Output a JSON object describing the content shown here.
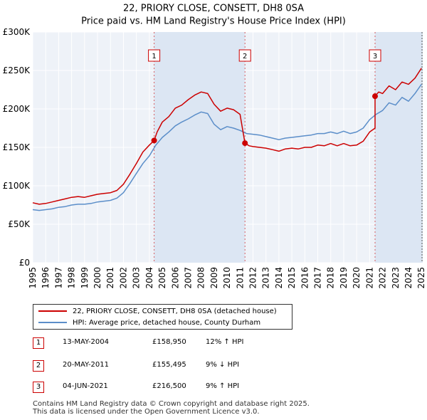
{
  "title_line1": "22, PRIORY CLOSE, CONSETT, DH8 0SA",
  "title_line2": "Price paid vs. HM Land Registry's House Price Index (HPI)",
  "chart_data": {
    "type": "line",
    "title": "22, PRIORY CLOSE, CONSETT, DH8 0SA",
    "subtitle": "Price paid vs. HM Land Registry's House Price Index (HPI)",
    "xlim": [
      1995,
      2025.1
    ],
    "ylim": [
      0,
      300000
    ],
    "x_ticks": [
      1995,
      1996,
      1997,
      1998,
      1999,
      2000,
      2001,
      2002,
      2003,
      2004,
      2005,
      2006,
      2007,
      2008,
      2009,
      2010,
      2011,
      2012,
      2013,
      2014,
      2015,
      2016,
      2017,
      2018,
      2019,
      2020,
      2021,
      2022,
      2023,
      2024,
      2025
    ],
    "x_tick_labels": [
      "1995",
      "1996",
      "1997",
      "1998",
      "1999",
      "2000",
      "2001",
      "2002",
      "2003",
      "2004",
      "2005",
      "2006",
      "2007",
      "2008",
      "2009",
      "2010",
      "2011",
      "2012",
      "2013",
      "2014",
      "2015",
      "2016",
      "2017",
      "2018",
      "2019",
      "2020",
      "2021",
      "2022",
      "2023",
      "2024",
      "2025"
    ],
    "y_ticks": [
      0,
      50000,
      100000,
      150000,
      200000,
      250000,
      300000
    ],
    "y_tick_labels": [
      "£0",
      "£50K",
      "£100K",
      "£150K",
      "£200K",
      "£250K",
      "£300K"
    ],
    "grid": true,
    "series": [
      {
        "name": "22, PRIORY CLOSE, CONSETT, DH8 0SA (detached house)",
        "color": "#cc0000",
        "x": [
          1995.0,
          1995.5,
          1996.0,
          1996.5,
          1997.0,
          1997.5,
          1998.0,
          1998.5,
          1999.0,
          1999.5,
          2000.0,
          2000.5,
          2001.0,
          2001.5,
          2002.0,
          2002.5,
          2003.0,
          2003.5,
          2004.0,
          2004.37,
          2004.37,
          2004.6,
          2005.0,
          2005.5,
          2006.0,
          2006.5,
          2007.0,
          2007.5,
          2008.0,
          2008.5,
          2009.0,
          2009.5,
          2010.0,
          2010.5,
          2011.0,
          2011.38,
          2011.38,
          2011.7,
          2012.0,
          2012.5,
          2013.0,
          2013.5,
          2014.0,
          2014.5,
          2015.0,
          2015.5,
          2016.0,
          2016.5,
          2017.0,
          2017.5,
          2018.0,
          2018.5,
          2019.0,
          2019.5,
          2020.0,
          2020.5,
          2021.0,
          2021.42,
          2021.42,
          2021.7,
          2022.0,
          2022.5,
          2023.0,
          2023.5,
          2024.0,
          2024.5,
          2025.0
        ],
        "values": [
          78000,
          76000,
          77000,
          79000,
          81000,
          83000,
          85000,
          86000,
          85000,
          87000,
          89000,
          90000,
          91000,
          94000,
          102000,
          115000,
          129000,
          144000,
          153000,
          158950,
          158950,
          170000,
          183000,
          190000,
          201000,
          205000,
          212000,
          218000,
          222000,
          220000,
          206000,
          197000,
          201000,
          199000,
          193000,
          155495,
          155495,
          152000,
          151000,
          150000,
          149000,
          147000,
          145000,
          148000,
          149000,
          148000,
          150000,
          150000,
          153000,
          152000,
          155000,
          152000,
          155000,
          152000,
          153000,
          158000,
          170000,
          175000,
          216500,
          222000,
          220000,
          230000,
          225000,
          235000,
          232000,
          240000,
          253000
        ]
      },
      {
        "name": "HPI: Average price, detached house, County Durham",
        "color": "#5b8ec9",
        "x": [
          1995.0,
          1995.5,
          1996.0,
          1996.5,
          1997.0,
          1997.5,
          1998.0,
          1998.5,
          1999.0,
          1999.5,
          2000.0,
          2000.5,
          2001.0,
          2001.5,
          2002.0,
          2002.5,
          2003.0,
          2003.5,
          2004.0,
          2004.5,
          2005.0,
          2005.5,
          2006.0,
          2006.5,
          2007.0,
          2007.5,
          2008.0,
          2008.5,
          2009.0,
          2009.5,
          2010.0,
          2010.5,
          2011.0,
          2011.5,
          2012.0,
          2012.5,
          2013.0,
          2013.5,
          2014.0,
          2014.5,
          2015.0,
          2015.5,
          2016.0,
          2016.5,
          2017.0,
          2017.5,
          2018.0,
          2018.5,
          2019.0,
          2019.5,
          2020.0,
          2020.5,
          2021.0,
          2021.5,
          2022.0,
          2022.5,
          2023.0,
          2023.5,
          2024.0,
          2024.5,
          2025.0
        ],
        "values": [
          69000,
          68000,
          69000,
          70000,
          72000,
          73000,
          75000,
          76000,
          76000,
          77000,
          79000,
          80000,
          81000,
          84000,
          91000,
          103000,
          116000,
          129000,
          139000,
          153000,
          163000,
          170000,
          178000,
          183000,
          187000,
          192000,
          196000,
          194000,
          180000,
          173000,
          177000,
          175000,
          172000,
          168000,
          167000,
          166000,
          164000,
          162000,
          160000,
          162000,
          163000,
          164000,
          165000,
          166000,
          168000,
          168000,
          170000,
          168000,
          171000,
          168000,
          170000,
          175000,
          186000,
          193000,
          198000,
          208000,
          205000,
          215000,
          210000,
          220000,
          232000
        ]
      }
    ],
    "sales": [
      {
        "number": "1",
        "x": 2004.37,
        "price": 158950,
        "date": "13-MAY-2004",
        "price_label": "£158,950",
        "hpi": "12% ↑ HPI"
      },
      {
        "number": "2",
        "x": 2011.38,
        "price": 155495,
        "date": "20-MAY-2011",
        "price_label": "£155,495",
        "hpi": "9% ↓ HPI"
      },
      {
        "number": "3",
        "x": 2021.42,
        "price": 216500,
        "date": "04-JUN-2021",
        "price_label": "£216,500",
        "hpi": "9% ↑ HPI"
      }
    ]
  },
  "legend": {
    "red_label": "22, PRIORY CLOSE, CONSETT, DH8 0SA (detached house)",
    "blue_label": "HPI: Average price, detached house, County Durham"
  },
  "footer": {
    "line1": "Contains HM Land Registry data © Crown copyright and database right 2025.",
    "line2": "This data is licensed under the Open Government Licence v3.0."
  }
}
